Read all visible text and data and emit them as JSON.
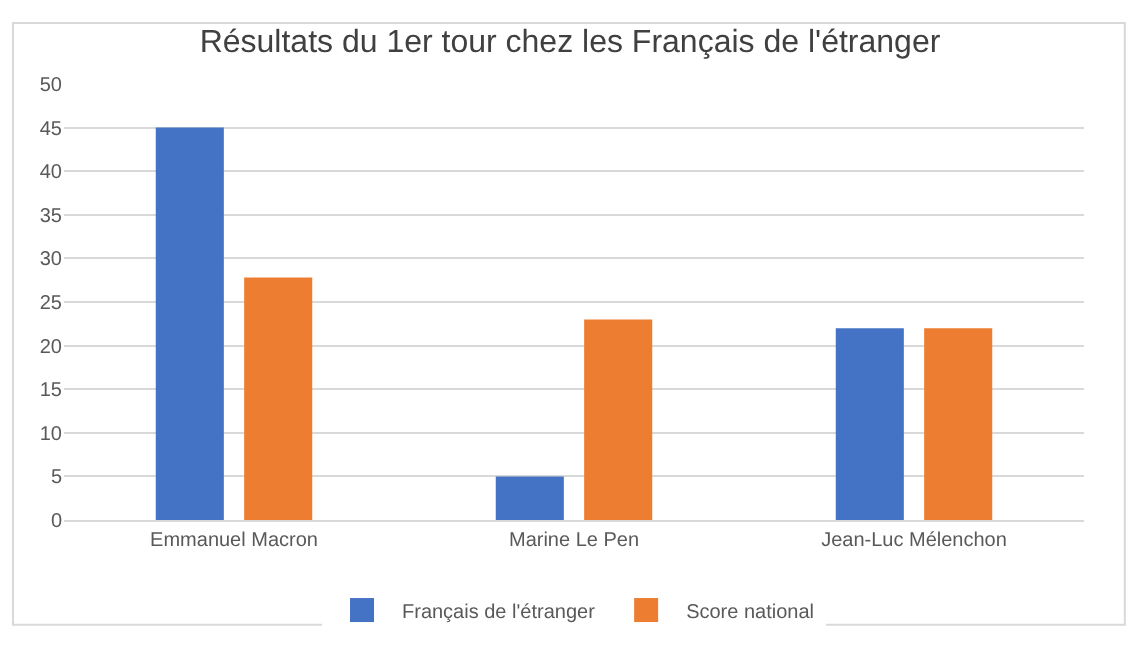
{
  "chart_data": {
    "type": "bar",
    "title": "Résultats du 1er tour chez les Français de l'étranger",
    "categories": [
      "Emmanuel Macron",
      "Marine Le Pen",
      "Jean-Luc Mélenchon"
    ],
    "series": [
      {
        "name": "Français de l'étranger",
        "color": "#4472c4",
        "values": [
          45,
          5,
          22
        ]
      },
      {
        "name": "Score national",
        "color": "#ed7d31",
        "values": [
          27.8,
          23,
          22
        ]
      }
    ],
    "ylim": [
      0,
      50
    ],
    "yticks": [
      0,
      5,
      10,
      15,
      20,
      25,
      30,
      35,
      40,
      45,
      50
    ],
    "grid": "y",
    "legend": "bottom"
  }
}
